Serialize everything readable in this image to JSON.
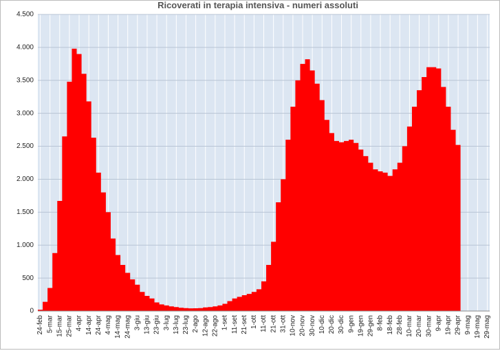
{
  "chart_data": {
    "type": "area",
    "title": "Ricoverati in terapia intensiva - numeri assoluti",
    "color": "#ff0000",
    "plot_background": "#dce6f2",
    "grid": true,
    "categories": [
      "24-feb",
      null,
      "5-mar",
      null,
      "15-mar",
      null,
      "25-mar",
      null,
      "4-apr",
      null,
      "14-apr",
      null,
      "24-apr",
      null,
      "4-mag",
      null,
      "14-mag",
      null,
      "24-mag",
      null,
      "3-giu",
      null,
      "13-giu",
      null,
      "23-giu",
      null,
      "3-lug",
      null,
      "13-lug",
      null,
      "23-lug",
      null,
      "2-ago",
      null,
      "12-ago",
      null,
      "22-ago",
      null,
      "1-set",
      null,
      "11-set",
      null,
      "21-set",
      null,
      "1-ott",
      null,
      "11-ott",
      null,
      "21-ott",
      null,
      "31-ott",
      null,
      "10-nov",
      null,
      "20-nov",
      null,
      "30-nov",
      null,
      "10-dic",
      null,
      "20-dic",
      null,
      "30-dic",
      null,
      "9-gen",
      null,
      "19-gen",
      null,
      "29-gen",
      null,
      "8-feb",
      null,
      "18-feb",
      null,
      "28-feb",
      null,
      "10-mar",
      null,
      "20-mar",
      null,
      "30-mar",
      null,
      "9-apr",
      null,
      "19-apr",
      null,
      "29-apr",
      null,
      "9-mag",
      null,
      "19-mag",
      null,
      "29-mag"
    ],
    "values": [
      20,
      140,
      350,
      880,
      1670,
      2650,
      3480,
      3980,
      3900,
      3600,
      3180,
      2630,
      2100,
      1800,
      1500,
      1100,
      850,
      700,
      580,
      480,
      400,
      290,
      230,
      190,
      130,
      100,
      85,
      70,
      60,
      50,
      45,
      40,
      42,
      45,
      55,
      60,
      70,
      85,
      110,
      150,
      190,
      215,
      240,
      260,
      290,
      330,
      450,
      700,
      1050,
      1650,
      2000,
      2600,
      3100,
      3500,
      3750,
      3820,
      3650,
      3450,
      3200,
      2900,
      2700,
      2580,
      2560,
      2580,
      2600,
      2550,
      2450,
      2350,
      2250,
      2150,
      2120,
      2100,
      2050,
      2150,
      2250,
      2500,
      2800,
      3100,
      3350,
      3550,
      3700,
      3700,
      3680,
      3400,
      3100,
      2750,
      2520,
      null,
      null,
      null,
      null,
      null,
      null
    ],
    "ylim": [
      0,
      4500
    ],
    "yticks": [
      0,
      500,
      {
        "value": 1000,
        "label": "1.000"
      },
      {
        "value": 1500,
        "label": "1.500"
      },
      {
        "value": 2000,
        "label": "2.000"
      },
      {
        "value": 2500,
        "label": "2.500"
      },
      {
        "value": 3000,
        "label": "3.000"
      },
      {
        "value": 3500,
        "label": "3.500"
      },
      {
        "value": 4000,
        "label": "4.000"
      },
      {
        "value": 4500,
        "label": "4.500"
      }
    ]
  }
}
